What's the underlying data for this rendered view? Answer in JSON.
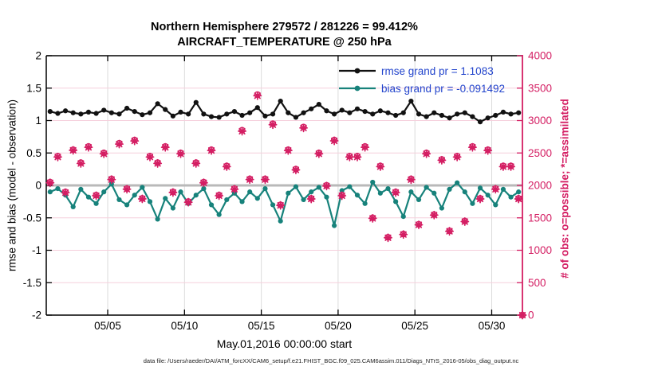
{
  "title": {
    "line1": "Northern Hemisphere 279572 / 281226 = 99.412%",
    "line2": "AIRCRAFT_TEMPERATURE @ 250 hPa"
  },
  "legend": {
    "text_color": "#2244cc",
    "items": [
      {
        "key": "rmse",
        "label": "rmse grand pr = 1.1083"
      },
      {
        "key": "bias",
        "label": "bias grand pr = -0.091492"
      }
    ]
  },
  "footer": {
    "datafile": "data file: /Users/raeder/DAI/ATM_forcXX/CAM6_setup/f.e21.FHIST_BGC.f09_025.CAM6assim.011/Diags_NTrS_2016-05/obs_diag_output.nc"
  },
  "chart_data": {
    "type": "line",
    "title": "Northern Hemisphere 279572 / 281226 = 99.412% — AIRCRAFT_TEMPERATURE @ 250 hPa",
    "grid": {
      "vertical_color": "#dcdcdc",
      "horizontal_color": "#f5cfdc",
      "zero_line_color": "#b9b9b9"
    },
    "left_axis": {
      "label": "rmse and bias (model - observation)",
      "range": [
        -2,
        2
      ],
      "ticks": [
        2,
        1.5,
        1,
        0.5,
        0,
        -0.5,
        -1,
        -1.5,
        -2
      ],
      "tick_labels": [
        "2",
        "1.5",
        "1",
        "0.5",
        "0",
        "-0.5",
        "-1",
        "-1.5",
        "-2"
      ],
      "color": "#000000"
    },
    "right_axis": {
      "label": "# of obs: o=possible; *=assimilated",
      "range": [
        0,
        4000
      ],
      "ticks": [
        0,
        500,
        1000,
        1500,
        2000,
        2500,
        3000,
        3500,
        4000
      ],
      "tick_labels": [
        "0",
        "500",
        "1000",
        "1500",
        "2000",
        "2500",
        "3000",
        "3500",
        "4000"
      ],
      "color": "#d41e63"
    },
    "x_axis": {
      "label": "May.01,2016 00:00:00 start",
      "range_days": [
        0,
        31
      ],
      "tick_days": [
        4,
        9,
        14,
        19,
        24,
        29
      ],
      "tick_labels": [
        "05/05",
        "05/10",
        "05/15",
        "05/20",
        "05/25",
        "05/30"
      ]
    },
    "series": [
      {
        "name": "rmse",
        "axis": "left",
        "color": "#111111",
        "marker": "dot",
        "t_start": 0.25,
        "t_step": 0.5,
        "values": [
          1.14,
          1.11,
          1.15,
          1.12,
          1.1,
          1.13,
          1.11,
          1.16,
          1.12,
          1.1,
          1.19,
          1.14,
          1.09,
          1.12,
          1.26,
          1.17,
          1.07,
          1.13,
          1.1,
          1.28,
          1.1,
          1.06,
          1.05,
          1.1,
          1.14,
          1.08,
          1.12,
          1.2,
          1.07,
          1.1,
          1.3,
          1.12,
          1.05,
          1.12,
          1.18,
          1.25,
          1.15,
          1.1,
          1.16,
          1.12,
          1.18,
          1.14,
          1.1,
          1.15,
          1.12,
          1.08,
          1.12,
          1.3,
          1.1,
          1.06,
          1.12,
          1.08,
          1.04,
          1.1,
          1.12,
          1.06,
          0.98,
          1.04,
          1.08,
          1.13,
          1.1,
          1.12
        ]
      },
      {
        "name": "bias",
        "axis": "left",
        "color": "#17827b",
        "marker": "dot",
        "t_start": 0.25,
        "t_step": 0.5,
        "values": [
          -0.1,
          -0.05,
          -0.15,
          -0.33,
          -0.06,
          -0.18,
          -0.28,
          -0.1,
          0.02,
          -0.22,
          -0.3,
          -0.15,
          -0.03,
          -0.25,
          -0.52,
          -0.2,
          -0.35,
          -0.1,
          -0.28,
          -0.15,
          -0.05,
          -0.3,
          -0.45,
          -0.22,
          -0.12,
          -0.25,
          -0.1,
          -0.2,
          -0.05,
          -0.3,
          -0.55,
          -0.12,
          -0.02,
          -0.22,
          -0.1,
          -0.03,
          -0.18,
          -0.62,
          -0.08,
          -0.02,
          -0.15,
          -0.28,
          0.05,
          -0.12,
          -0.05,
          -0.25,
          -0.48,
          -0.1,
          -0.22,
          -0.03,
          -0.12,
          -0.35,
          -0.06,
          0.04,
          -0.1,
          -0.28,
          -0.04,
          -0.15,
          -0.3,
          -0.06,
          -0.18,
          -0.1
        ]
      },
      {
        "name": "possible",
        "axis": "right",
        "color": "#d41e63",
        "marker": "o",
        "t_start": 0.25,
        "t_step": 0.5,
        "values": [
          2050,
          2450,
          1900,
          2550,
          2350,
          2600,
          1850,
          2500,
          2100,
          2650,
          1950,
          2700,
          1800,
          2450,
          2350,
          2600,
          1900,
          2500,
          1750,
          2350,
          2050,
          2550,
          1850,
          2300,
          1950,
          2850,
          2100,
          3400,
          2100,
          2950,
          1700,
          2550,
          2250,
          2900,
          1800,
          2500,
          2000,
          2700,
          1850,
          2450,
          2450,
          2600,
          1500,
          2300,
          1200,
          1900,
          1250,
          2100,
          1400,
          2500,
          1550,
          2400,
          1300,
          2450,
          1450,
          2600,
          1800,
          2550,
          1950,
          2300,
          2300,
          1800
        ],
        "extra_point": {
          "t": 31.0,
          "value": 0
        }
      },
      {
        "name": "assimilated",
        "axis": "right",
        "color": "#d41e63",
        "marker": "*",
        "t_start": 0.25,
        "t_step": 0.5,
        "values": [
          2040,
          2438,
          1889,
          2541,
          2338,
          2587,
          1841,
          2488,
          2090,
          2637,
          1941,
          2686,
          1792,
          2438,
          2339,
          2587,
          1891,
          2488,
          1741,
          2339,
          2040,
          2538,
          1841,
          2289,
          1941,
          2836,
          2090,
          3383,
          2090,
          2936,
          1692,
          2538,
          2239,
          2886,
          1791,
          2488,
          1990,
          2687,
          1841,
          2438,
          2438,
          2587,
          1492,
          2289,
          1193,
          1890,
          1243,
          2089,
          1392,
          2488,
          1542,
          2388,
          1293,
          2438,
          1442,
          2587,
          1791,
          2538,
          1941,
          2289,
          2289,
          1791
        ],
        "extra_point": {
          "t": 31.0,
          "value": 0
        }
      }
    ]
  }
}
